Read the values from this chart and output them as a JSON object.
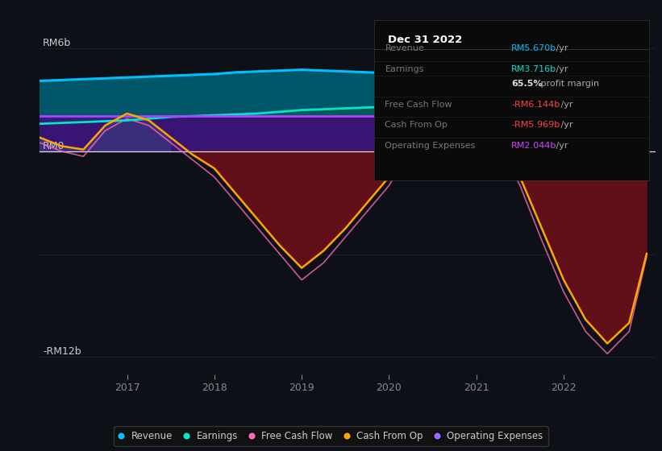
{
  "bg_color": "#0d1117",
  "plot_bg_color": "#0d1117",
  "y_min": -13,
  "y_max": 7.5,
  "y_label_top": "RM6b",
  "y_label_zero": "RM0",
  "y_label_bottom": "-RM12b",
  "x_ticks": [
    2017,
    2018,
    2019,
    2020,
    2021,
    2022
  ],
  "info_box_title": "Dec 31 2022",
  "info_rows": [
    {
      "label": "Revenue",
      "value": "RM5.670b",
      "suffix": " /yr",
      "vcolor": "#00bfff",
      "bold": false
    },
    {
      "label": "Earnings",
      "value": "RM3.716b",
      "suffix": " /yr",
      "vcolor": "#00e5cc",
      "bold": false
    },
    {
      "label": "",
      "value": "65.5%",
      "suffix": " profit margin",
      "vcolor": "#dddddd",
      "bold": true
    },
    {
      "label": "Free Cash Flow",
      "value": "-RM6.144b",
      "suffix": " /yr",
      "vcolor": "#ff4444",
      "bold": false
    },
    {
      "label": "Cash From Op",
      "value": "-RM5.969b",
      "suffix": " /yr",
      "vcolor": "#ff4444",
      "bold": false
    },
    {
      "label": "Operating Expenses",
      "value": "RM2.044b",
      "suffix": " /yr",
      "vcolor": "#cc44ff",
      "bold": false
    }
  ],
  "legend": [
    {
      "label": "Revenue",
      "color": "#00bfff"
    },
    {
      "label": "Earnings",
      "color": "#00e5cc"
    },
    {
      "label": "Free Cash Flow",
      "color": "#ff69b4"
    },
    {
      "label": "Cash From Op",
      "color": "#ffa500"
    },
    {
      "label": "Operating Expenses",
      "color": "#9966ff"
    }
  ],
  "x": [
    2016.0,
    2016.25,
    2016.5,
    2016.75,
    2017.0,
    2017.25,
    2017.5,
    2017.75,
    2018.0,
    2018.25,
    2018.5,
    2018.75,
    2019.0,
    2019.25,
    2019.5,
    2019.75,
    2020.0,
    2020.25,
    2020.5,
    2020.75,
    2021.0,
    2021.25,
    2021.5,
    2021.75,
    2022.0,
    2022.25,
    2022.5,
    2022.75,
    2022.95
  ],
  "revenue": [
    4.1,
    4.15,
    4.2,
    4.25,
    4.3,
    4.35,
    4.4,
    4.45,
    4.5,
    4.6,
    4.65,
    4.7,
    4.75,
    4.7,
    4.65,
    4.6,
    4.55,
    4.5,
    4.6,
    4.75,
    4.85,
    5.0,
    5.15,
    5.3,
    5.4,
    5.5,
    5.58,
    5.64,
    5.67
  ],
  "earnings": [
    1.6,
    1.65,
    1.7,
    1.75,
    1.8,
    1.9,
    2.0,
    2.05,
    2.1,
    2.15,
    2.2,
    2.3,
    2.4,
    2.45,
    2.5,
    2.55,
    2.6,
    2.65,
    2.7,
    2.75,
    2.85,
    3.0,
    3.15,
    3.3,
    3.45,
    3.55,
    3.62,
    3.68,
    3.716
  ],
  "operating_expenses": [
    2.044,
    2.044,
    2.044,
    2.044,
    2.044,
    2.044,
    2.044,
    2.044,
    2.044,
    2.044,
    2.044,
    2.044,
    2.044,
    2.044,
    2.044,
    2.044,
    2.044,
    2.044,
    2.044,
    2.044,
    2.044,
    2.044,
    2.044,
    2.044,
    2.044,
    2.044,
    2.044,
    2.044,
    2.044
  ],
  "cash_from_op": [
    0.8,
    0.3,
    0.1,
    1.5,
    2.2,
    1.8,
    0.8,
    -0.2,
    -1.0,
    -2.5,
    -4.0,
    -5.5,
    -6.8,
    -5.8,
    -4.5,
    -3.0,
    -1.5,
    0.5,
    2.8,
    3.2,
    2.5,
    0.8,
    -1.5,
    -4.5,
    -7.5,
    -9.8,
    -11.2,
    -10.0,
    -5.969
  ],
  "free_cash_flow": [
    0.5,
    0.0,
    -0.3,
    1.2,
    1.9,
    1.5,
    0.5,
    -0.5,
    -1.5,
    -3.0,
    -4.5,
    -6.0,
    -7.5,
    -6.5,
    -5.0,
    -3.5,
    -2.0,
    0.2,
    2.5,
    2.9,
    2.2,
    0.5,
    -2.0,
    -5.2,
    -8.2,
    -10.5,
    -11.8,
    -10.5,
    -6.144
  ]
}
